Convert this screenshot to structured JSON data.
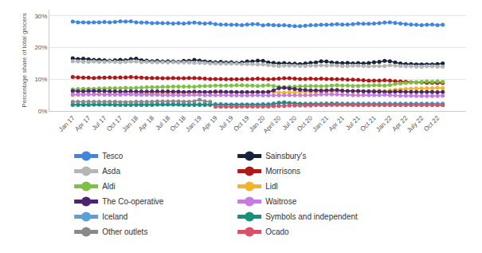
{
  "chart_data": {
    "type": "line",
    "marker": "circle",
    "line_style": "solid",
    "grid": true,
    "legend": "bottom",
    "y_label": "Percentage share of total grocers",
    "ylim": [
      0,
      32
    ],
    "yticks": [
      {
        "value": 0,
        "label": "0%"
      },
      {
        "value": 10,
        "label": "10%"
      },
      {
        "value": 20,
        "label": "20%"
      },
      {
        "value": 30,
        "label": "30%"
      }
    ],
    "categories": [
      "Jan 17",
      null,
      null,
      "Apr 17",
      null,
      null,
      "Jul 17",
      null,
      null,
      "Oct 17",
      null,
      null,
      "Jan 18",
      null,
      null,
      "Apr 18",
      null,
      null,
      "Jul 18",
      null,
      null,
      "Oct 18",
      null,
      null,
      "Jan 19",
      null,
      null,
      "Apr 19",
      null,
      null,
      "Jul 19",
      null,
      null,
      "Oct 19",
      null,
      null,
      "Jan 20",
      null,
      null,
      "April 20",
      null,
      null,
      "Jul 20",
      null,
      null,
      "Oct 20",
      null,
      null,
      "Jan 21",
      null,
      null,
      "Apr 21",
      null,
      null,
      "Jul 21",
      null,
      null,
      "Oct 21",
      null,
      null,
      "Jan 22",
      null,
      null,
      "Apr 22",
      null,
      null,
      "July 22",
      null,
      null,
      "Oct 22",
      null
    ],
    "series": [
      {
        "name": "Tesco",
        "color": "#3f86e0",
        "values": [
          28.2,
          28.0,
          28.0,
          27.9,
          28.0,
          28.0,
          28.1,
          28.0,
          28.1,
          28.3,
          28.2,
          28.3,
          28.0,
          27.9,
          27.9,
          27.7,
          27.8,
          27.7,
          27.7,
          27.6,
          27.7,
          27.6,
          27.8,
          27.9,
          27.7,
          27.6,
          27.7,
          27.4,
          27.3,
          27.3,
          27.2,
          27.2,
          27.1,
          27.3,
          27.4,
          27.4,
          27.0,
          27.2,
          27.1,
          27.0,
          27.1,
          26.9,
          26.8,
          26.8,
          26.9,
          27.1,
          27.1,
          27.2,
          27.2,
          27.3,
          27.4,
          27.3,
          27.3,
          27.4,
          27.6,
          27.5,
          27.5,
          27.6,
          27.7,
          27.9,
          28.0,
          27.8,
          27.6,
          27.4,
          27.3,
          27.2,
          27.1,
          27.2,
          27.3,
          27.1,
          27.2
        ]
      },
      {
        "name": "Sainsbury's",
        "color": "#15243a",
        "values": [
          16.6,
          16.4,
          16.5,
          16.3,
          16.1,
          16.1,
          16.0,
          15.9,
          16.0,
          16.1,
          16.0,
          16.4,
          16.5,
          16.0,
          15.9,
          15.7,
          15.8,
          15.6,
          15.7,
          15.6,
          15.5,
          15.8,
          15.8,
          16.1,
          15.9,
          15.6,
          15.5,
          15.4,
          15.5,
          15.3,
          15.4,
          15.2,
          15.3,
          15.6,
          15.6,
          15.9,
          15.8,
          15.3,
          15.2,
          15.0,
          15.1,
          14.9,
          14.9,
          14.8,
          15.0,
          15.2,
          15.3,
          15.7,
          15.6,
          15.3,
          15.2,
          15.1,
          15.2,
          15.0,
          15.1,
          15.0,
          15.1,
          15.4,
          15.5,
          15.8,
          15.7,
          15.3,
          15.0,
          14.8,
          14.8,
          14.7,
          14.7,
          14.7,
          14.7,
          14.8,
          15.0
        ]
      },
      {
        "name": "Asda",
        "color": "#b5b5b5",
        "values": [
          15.7,
          15.6,
          15.5,
          15.5,
          15.6,
          15.5,
          15.5,
          15.6,
          15.5,
          15.4,
          15.5,
          15.6,
          15.6,
          15.4,
          15.5,
          15.4,
          15.4,
          15.4,
          15.3,
          15.4,
          15.3,
          15.3,
          15.3,
          15.2,
          15.2,
          15.1,
          15.0,
          15.0,
          14.9,
          14.9,
          14.9,
          14.9,
          14.8,
          14.8,
          14.8,
          14.7,
          14.7,
          14.5,
          14.3,
          14.2,
          14.3,
          14.3,
          14.3,
          14.2,
          14.2,
          14.3,
          14.3,
          14.4,
          14.3,
          14.4,
          14.3,
          14.2,
          14.2,
          14.3,
          14.3,
          14.2,
          14.1,
          14.2,
          14.2,
          14.2,
          14.4,
          14.3,
          14.2,
          14.1,
          14.1,
          14.0,
          14.0,
          14.1,
          14.1,
          14.0,
          14.0
        ]
      },
      {
        "name": "Morrisons",
        "color": "#b01818",
        "values": [
          10.7,
          10.6,
          10.5,
          10.5,
          10.4,
          10.5,
          10.5,
          10.6,
          10.5,
          10.6,
          10.6,
          10.7,
          10.6,
          10.5,
          10.4,
          10.4,
          10.4,
          10.3,
          10.3,
          10.4,
          10.3,
          10.3,
          10.4,
          10.4,
          10.3,
          10.2,
          10.1,
          10.1,
          10.1,
          10.0,
          10.0,
          10.0,
          10.0,
          10.1,
          10.1,
          10.2,
          10.1,
          10.0,
          10.1,
          10.2,
          10.3,
          10.3,
          10.2,
          10.1,
          10.1,
          10.2,
          10.1,
          10.2,
          10.1,
          10.1,
          10.0,
          10.0,
          9.9,
          9.9,
          9.8,
          9.7,
          9.6,
          9.6,
          9.6,
          9.7,
          9.6,
          9.4,
          9.3,
          9.2,
          9.1,
          9.0,
          9.0,
          8.9,
          8.9,
          8.8,
          8.8
        ]
      },
      {
        "name": "Aldi",
        "color": "#7cc142",
        "values": [
          6.8,
          6.9,
          7.0,
          7.0,
          7.0,
          7.1,
          7.1,
          7.2,
          7.2,
          7.2,
          7.3,
          7.2,
          7.3,
          7.4,
          7.5,
          7.5,
          7.5,
          7.6,
          7.6,
          7.7,
          7.7,
          7.7,
          7.7,
          7.6,
          7.8,
          7.9,
          7.9,
          8.0,
          8.0,
          8.0,
          8.0,
          8.1,
          8.1,
          8.0,
          8.0,
          7.9,
          8.0,
          8.1,
          7.9,
          7.6,
          7.5,
          7.6,
          7.7,
          7.8,
          7.9,
          7.9,
          7.9,
          7.8,
          7.9,
          8.0,
          8.1,
          8.0,
          8.0,
          7.9,
          7.9,
          8.0,
          8.0,
          8.1,
          8.1,
          8.0,
          8.2,
          8.5,
          8.7,
          8.8,
          9.0,
          9.1,
          9.2,
          9.3,
          9.2,
          9.3,
          9.2
        ]
      },
      {
        "name": "Lidl",
        "color": "#f2b42a",
        "values": [
          5.0,
          5.1,
          5.2,
          5.2,
          5.2,
          5.3,
          5.3,
          5.3,
          5.3,
          5.3,
          5.4,
          5.3,
          5.4,
          5.5,
          5.6,
          5.6,
          5.6,
          5.6,
          5.7,
          5.7,
          5.7,
          5.7,
          5.8,
          5.7,
          5.8,
          5.9,
          5.9,
          5.9,
          5.9,
          6.0,
          6.0,
          6.0,
          6.0,
          6.0,
          6.0,
          5.9,
          6.0,
          6.1,
          6.0,
          5.8,
          5.8,
          5.9,
          5.9,
          6.0,
          6.1,
          6.1,
          6.1,
          6.0,
          6.1,
          6.2,
          6.3,
          6.2,
          6.3,
          6.2,
          6.2,
          6.3,
          6.3,
          6.4,
          6.4,
          6.3,
          6.5,
          6.7,
          6.8,
          6.9,
          7.0,
          7.1,
          7.1,
          7.2,
          7.2,
          7.3,
          7.2
        ]
      },
      {
        "name": "The Co-operative",
        "color": "#4b2470",
        "values": [
          6.3,
          6.2,
          6.2,
          6.3,
          6.3,
          6.3,
          6.3,
          6.2,
          6.2,
          6.1,
          6.1,
          6.2,
          6.1,
          6.1,
          6.1,
          6.2,
          6.2,
          6.2,
          6.2,
          6.1,
          6.1,
          6.0,
          6.0,
          6.1,
          6.0,
          6.0,
          6.0,
          6.1,
          6.1,
          6.0,
          6.0,
          5.9,
          5.9,
          5.9,
          5.9,
          6.0,
          5.9,
          6.0,
          6.5,
          7.2,
          7.3,
          7.1,
          6.9,
          6.7,
          6.6,
          6.5,
          6.5,
          6.4,
          6.5,
          6.6,
          6.6,
          6.4,
          6.3,
          6.3,
          6.3,
          6.2,
          6.2,
          6.1,
          6.1,
          6.0,
          6.0,
          6.1,
          6.1,
          6.0,
          6.0,
          6.0,
          6.0,
          6.0,
          6.0,
          5.9,
          6.0
        ]
      },
      {
        "name": "Waitrose",
        "color": "#c77be0",
        "values": [
          5.2,
          5.2,
          5.1,
          5.2,
          5.2,
          5.2,
          5.1,
          5.1,
          5.1,
          5.1,
          5.2,
          5.2,
          5.1,
          5.1,
          5.1,
          5.1,
          5.1,
          5.0,
          5.0,
          5.0,
          5.0,
          5.0,
          5.1,
          5.1,
          5.1,
          5.0,
          5.0,
          5.0,
          5.0,
          5.0,
          4.9,
          4.9,
          4.9,
          4.9,
          5.0,
          5.0,
          4.9,
          4.9,
          4.9,
          4.9,
          5.0,
          5.0,
          5.0,
          5.0,
          5.0,
          5.0,
          5.1,
          5.2,
          5.2,
          5.2,
          5.2,
          5.1,
          5.1,
          5.0,
          5.0,
          5.0,
          5.0,
          5.0,
          5.0,
          5.1,
          5.0,
          4.9,
          4.8,
          4.8,
          4.8,
          4.7,
          4.7,
          4.7,
          4.7,
          4.7,
          4.8
        ]
      },
      {
        "name": "Iceland",
        "color": "#5aa0d8",
        "values": [
          2.1,
          2.1,
          2.1,
          2.1,
          2.1,
          2.1,
          2.1,
          2.1,
          2.1,
          2.1,
          2.1,
          2.1,
          2.2,
          2.2,
          2.2,
          2.2,
          2.2,
          2.2,
          2.2,
          2.2,
          2.2,
          2.2,
          2.1,
          2.1,
          2.2,
          2.2,
          2.2,
          2.2,
          2.2,
          2.1,
          2.1,
          2.1,
          2.1,
          2.1,
          2.1,
          2.1,
          2.2,
          2.2,
          2.4,
          2.4,
          2.5,
          2.4,
          2.4,
          2.3,
          2.3,
          2.3,
          2.3,
          2.3,
          2.4,
          2.4,
          2.4,
          2.3,
          2.3,
          2.3,
          2.3,
          2.3,
          2.3,
          2.3,
          2.3,
          2.3,
          2.3,
          2.3,
          2.3,
          2.3,
          2.3,
          2.3,
          2.3,
          2.3,
          2.3,
          2.3,
          2.3
        ]
      },
      {
        "name": "Symbols and independent",
        "color": "#17907a",
        "values": [
          1.9,
          1.9,
          1.9,
          1.9,
          2.0,
          2.0,
          2.0,
          2.0,
          1.9,
          1.9,
          1.9,
          1.9,
          1.9,
          1.9,
          1.9,
          1.9,
          2.0,
          2.0,
          2.0,
          2.0,
          2.0,
          1.9,
          1.9,
          1.9,
          1.9,
          1.9,
          1.9,
          1.9,
          1.9,
          1.9,
          1.9,
          1.9,
          1.9,
          1.9,
          1.9,
          1.9,
          1.9,
          1.9,
          2.1,
          2.6,
          2.7,
          2.5,
          2.3,
          2.2,
          2.1,
          2.1,
          2.1,
          2.1,
          2.1,
          2.2,
          2.2,
          2.1,
          2.1,
          2.0,
          2.0,
          2.0,
          2.0,
          2.0,
          2.0,
          2.0,
          2.0,
          2.0,
          2.0,
          2.0,
          2.0,
          2.0,
          2.0,
          2.0,
          2.0,
          1.9,
          1.9
        ]
      },
      {
        "name": "Other outlets",
        "color": "#8a8a8a",
        "values": [
          2.9,
          2.9,
          2.9,
          2.9,
          2.9,
          2.9,
          2.9,
          2.9,
          2.9,
          2.8,
          2.8,
          2.8,
          2.9,
          2.9,
          2.9,
          2.9,
          3.0,
          3.0,
          3.0,
          3.0,
          3.0,
          2.9,
          2.9,
          3.0,
          3.5,
          3.0,
          2.9,
          null,
          null,
          null,
          null,
          null,
          null,
          null,
          null,
          null,
          null,
          null,
          null,
          null,
          null,
          null,
          null,
          null,
          null,
          null,
          null,
          null,
          null,
          null,
          null,
          null,
          null,
          null,
          null,
          null,
          null,
          null,
          null,
          null,
          null,
          null,
          null,
          null,
          null,
          null,
          null,
          null,
          null,
          null,
          null
        ]
      },
      {
        "name": "Ocado",
        "color": "#d9506b",
        "values": [
          null,
          null,
          null,
          null,
          null,
          null,
          null,
          null,
          null,
          null,
          null,
          null,
          null,
          null,
          null,
          null,
          null,
          null,
          null,
          null,
          null,
          null,
          null,
          null,
          null,
          null,
          null,
          1.3,
          1.3,
          1.3,
          1.3,
          1.3,
          1.4,
          1.4,
          1.4,
          1.4,
          1.4,
          1.4,
          1.5,
          1.6,
          1.6,
          1.7,
          1.7,
          1.7,
          1.7,
          1.7,
          1.8,
          1.8,
          1.8,
          1.9,
          1.9,
          1.9,
          1.9,
          1.8,
          1.8,
          1.8,
          1.8,
          1.8,
          1.8,
          1.8,
          1.8,
          1.8,
          1.8,
          1.8,
          1.8,
          1.8,
          1.8,
          1.8,
          1.8,
          1.8,
          1.8
        ]
      }
    ]
  }
}
